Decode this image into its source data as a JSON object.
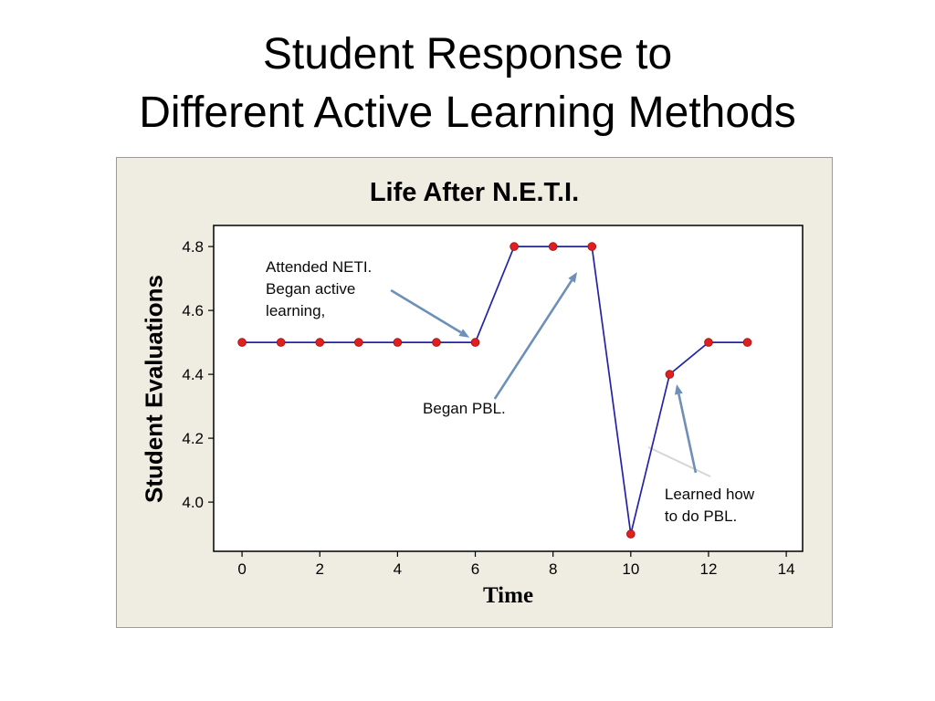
{
  "slide": {
    "title_line1": "Student Response to",
    "title_line2": "Different Active Learning Methods"
  },
  "colors": {
    "line": "#2323a8",
    "marker": "#e01f1f",
    "marker_edge": "#a31111",
    "arrow": "#6d8fb8",
    "panel_bg": "#efece1",
    "panel_border": "#9b9b9b",
    "plot_bg": "#ffffff",
    "plot_border": "#000000",
    "callout": "#d6d6d6",
    "tick": "#000000"
  },
  "chart_data": {
    "type": "line",
    "title": "Life After N.E.T.I.",
    "xlabel": "Time",
    "ylabel": "Student Evaluations",
    "x": [
      0,
      1,
      2,
      3,
      4,
      5,
      6,
      7,
      8,
      9,
      10,
      11,
      12,
      13
    ],
    "y": [
      4.5,
      4.5,
      4.5,
      4.5,
      4.5,
      4.5,
      4.5,
      4.8,
      4.8,
      4.8,
      3.9,
      4.4,
      4.5,
      4.5
    ],
    "xticks": [
      0,
      2,
      4,
      6,
      8,
      10,
      12,
      14
    ],
    "ytick_values": [
      4.0,
      4.2,
      4.4,
      4.6,
      4.8
    ],
    "ytick_labels": [
      "4.0",
      "4.2",
      "4.4",
      "4.6",
      "4.8"
    ],
    "xlim": [
      -0.73,
      14.42
    ],
    "ylim": [
      3.846,
      4.866
    ],
    "grid": false,
    "legend": null,
    "annotations": [
      {
        "lines": [
          "Attended NETI.",
          "Began active",
          "learning,"
        ],
        "x": 0.61,
        "y": 4.72,
        "arrow": {
          "x1": 3.83,
          "y1": 4.663,
          "x2": 5.85,
          "y2": 4.515
        }
      },
      {
        "lines": [
          "Began PBL."
        ],
        "x": 4.65,
        "y": 4.277,
        "arrow": {
          "x1": 6.5,
          "y1": 4.323,
          "x2": 8.62,
          "y2": 4.72
        }
      },
      {
        "lines": [
          "Learned how",
          "to do PBL."
        ],
        "x": 10.87,
        "y": 4.009,
        "arrow": {
          "x1": 11.67,
          "y1": 4.092,
          "x2": 11.18,
          "y2": 4.369
        }
      }
    ],
    "callout_line": {
      "x1": 12.05,
      "y1": 4.08,
      "x2": 10.45,
      "y2": 4.172
    }
  }
}
